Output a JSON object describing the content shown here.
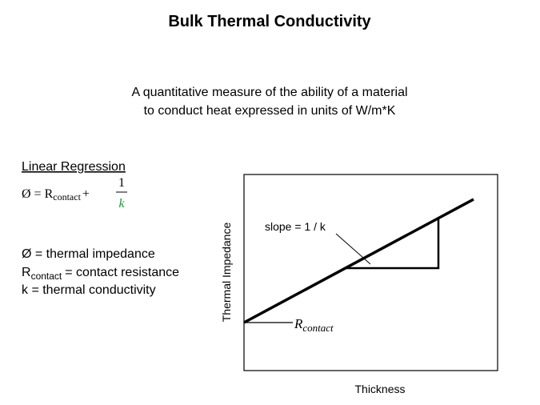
{
  "title": "Bulk Thermal Conductivity",
  "description": {
    "lines": [
      "A quantitative measure of the ability of a material",
      "to conduct heat expressed in units of W/m*K"
    ]
  },
  "regression": {
    "heading": "Linear Regression",
    "formula": {
      "lhs": "Ø =",
      "r": "R",
      "r_sub": "contact",
      "plus": "+",
      "numerator": "1",
      "denominator": "k"
    }
  },
  "definitions": [
    {
      "text": "Ø = thermal impedance"
    },
    {
      "symbol": "R",
      "sub": "contact",
      "text": "= contact resistance"
    },
    {
      "text": "k = thermal conductivity"
    }
  ],
  "diagram": {
    "y_label": "Thermal Impedance",
    "x_label": "Thickness",
    "slope_label": "slope = 1 / k",
    "intercept_label": {
      "symbol": "R",
      "sub": "contact"
    }
  }
}
